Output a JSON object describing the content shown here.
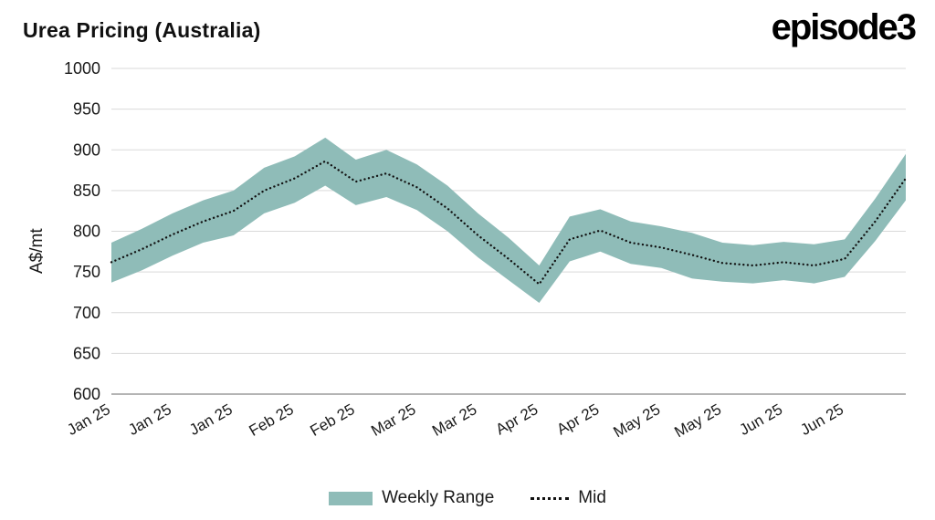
{
  "branding": {
    "logo_text": "episode3"
  },
  "chart_data": {
    "type": "area",
    "subtype": "band-with-mid-line",
    "title": "Urea Pricing (Australia)",
    "ylabel": "A$/mt",
    "xlabel": "",
    "ylim": [
      600,
      1000
    ],
    "y_ticks": [
      600,
      650,
      700,
      750,
      800,
      850,
      900,
      950,
      1000
    ],
    "grid": "horizontal",
    "legend_position": "bottom-center",
    "legend": [
      "Weekly Range",
      "Mid"
    ],
    "x_tick_every": 2,
    "x_labels": [
      "Jan 25",
      "Jan 25",
      "Jan 25",
      "Feb 25",
      "Feb 25",
      "Mar 25",
      "Mar 25",
      "Apr 25",
      "Apr 25",
      "May 25",
      "May 25",
      "Jun 25",
      "Jun 25"
    ],
    "series": {
      "low": [
        737,
        752,
        770,
        786,
        795,
        822,
        835,
        856,
        832,
        842,
        826,
        800,
        768,
        740,
        712,
        763,
        775,
        760,
        755,
        742,
        738,
        736,
        740,
        736,
        744,
        788,
        838
      ],
      "mid": [
        762,
        778,
        796,
        812,
        825,
        850,
        865,
        886,
        861,
        871,
        854,
        828,
        795,
        766,
        735,
        790,
        801,
        786,
        780,
        771,
        761,
        758,
        762,
        758,
        766,
        812,
        865
      ],
      "high": [
        786,
        803,
        822,
        838,
        850,
        878,
        892,
        915,
        888,
        900,
        882,
        856,
        822,
        792,
        758,
        818,
        827,
        812,
        806,
        798,
        786,
        783,
        787,
        784,
        790,
        840,
        895
      ]
    },
    "colors": {
      "band": "#8FBCB8",
      "line": "#111111",
      "grid": "#D9D9D9",
      "axis": "#9B9B9B",
      "text": "#1A1A1A"
    }
  }
}
